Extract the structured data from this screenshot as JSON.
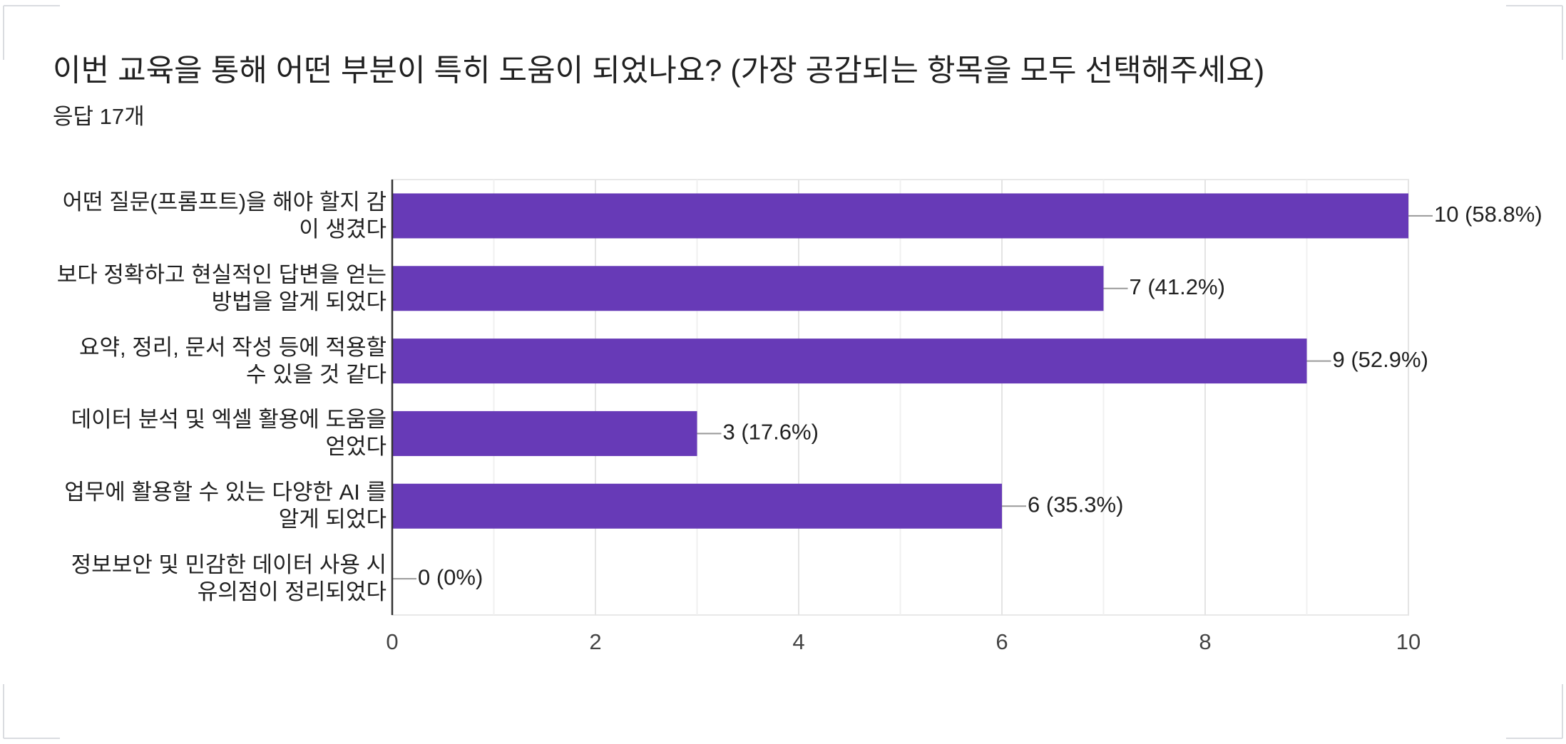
{
  "chart_data": {
    "type": "bar",
    "orientation": "horizontal",
    "title": "이번 교육을 통해 어떤 부분이 특히 도움이 되었나요? (가장 공감되는 항목을 모두 선택해주세요)",
    "subtitle": "응답 17개",
    "categories": [
      "어떤 질문(프롬프트)을 해야 할지 감\n이 생겼다",
      "보다 정확하고 현실적인 답변을 얻는\n방법을 알게 되었다",
      "요약, 정리, 문서 작성 등에 적용할\n수 있을 것 같다",
      "데이터 분석 및 엑셀 활용에 도움을\n얻었다",
      "업무에 활용할 수 있는 다양한 AI 를\n알게 되었다",
      "정보보안 및 민감한 데이터 사용 시\n유의점이 정리되었다"
    ],
    "values": [
      10,
      7,
      9,
      3,
      6,
      0
    ],
    "value_labels": [
      "10 (58.8%)",
      "7 (41.2%)",
      "9 (52.9%)",
      "3 (17.6%)",
      "6 (35.3%)",
      "0 (0%)"
    ],
    "color": "#673ab7",
    "xlim": [
      0,
      10
    ],
    "xticks": [
      0,
      2,
      4,
      6,
      8,
      10
    ],
    "minor_xticks": [
      1,
      3,
      5,
      7,
      9
    ],
    "grid": true
  }
}
